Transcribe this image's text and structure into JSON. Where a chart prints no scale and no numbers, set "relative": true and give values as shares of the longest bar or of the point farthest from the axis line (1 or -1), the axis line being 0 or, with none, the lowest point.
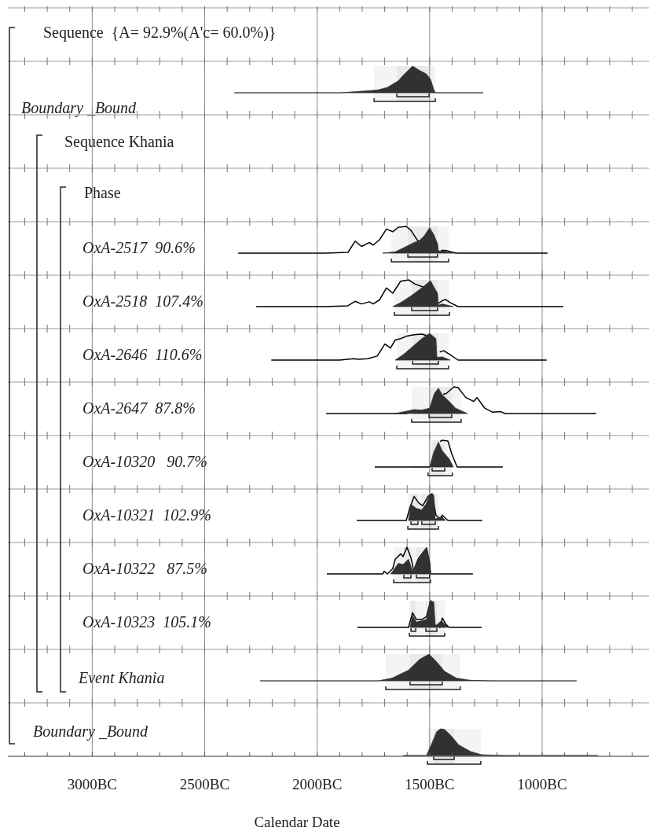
{
  "chart_data": [
    {
      "type": "other",
      "title": "Sequence  {A= 92.9%(A'c= 60.0%)}"
    },
    {
      "type": "area",
      "title": "Boundary _Bound",
      "relative": true,
      "xlim": [
        -3375,
        -525
      ],
      "grid": "x",
      "tick_labels": false,
      "series": [
        {
          "type": "area",
          "color": "#333333",
          "x": [
            -2368,
            -1897,
            -1733,
            -1688,
            -1639,
            -1618,
            -1576,
            -1548,
            -1514,
            -1496,
            -1479,
            -1470,
            -1262
          ],
          "values": [
            0,
            0,
            0.1,
            0.2,
            0.45,
            0.65,
            1,
            0.85,
            0.7,
            0.5,
            0.05,
            0,
            0
          ]
        }
      ],
      "bands": [
        {
          "axis": "x",
          "from": -1646,
          "to": -1503
        },
        {
          "axis": "x",
          "from": -1747,
          "to": -1475
        }
      ]
    },
    {
      "type": "other",
      "title": "Sequence Khania"
    },
    {
      "type": "other",
      "title": "Phase"
    },
    {
      "type": "area",
      "title": "OxA-2517  90.6%",
      "relative": true,
      "xlim": [
        -3375,
        -525
      ],
      "grid": "x",
      "tick_labels": false,
      "series": [
        {
          "type": "line",
          "color": "#000000",
          "x": [
            -2351,
            -1967,
            -1863,
            -1831,
            -1803,
            -1768,
            -1751,
            -1723,
            -1692,
            -1664,
            -1639,
            -1604,
            -1583,
            -1552,
            -1540,
            -1500,
            -1450,
            -1426,
            -1395,
            -1378,
            -976
          ],
          "values": [
            0,
            0,
            0.03,
            0.45,
            0.25,
            0.4,
            0.3,
            0.5,
            0.9,
            0.8,
            0.97,
            1,
            0.85,
            0.45,
            0.48,
            null,
            0.1,
            0.1,
            0.03,
            0,
            0
          ]
        },
        {
          "type": "area",
          "color": "#333333",
          "x": [
            -1709,
            -1653,
            -1604,
            -1569,
            -1548,
            -1524,
            -1500,
            -1482,
            -1465,
            -1461,
            -1440,
            -1410,
            -1385
          ],
          "values": [
            0,
            0.05,
            0.25,
            0.4,
            0.45,
            0.65,
            0.95,
            0.7,
            0.35,
            0.08,
            0.08,
            0.04,
            0
          ]
        }
      ],
      "bands": [
        {
          "axis": "x",
          "from": -1597,
          "to": -1465
        },
        {
          "axis": "x",
          "from": -1670,
          "to": -1416
        }
      ]
    },
    {
      "type": "area",
      "title": "OxA-2518  107.4%",
      "relative": true,
      "xlim": [
        -3375,
        -525
      ],
      "grid": "x",
      "tick_labels": false,
      "series": [
        {
          "type": "line",
          "color": "#000000",
          "x": [
            -2271,
            -1967,
            -1863,
            -1831,
            -1803,
            -1768,
            -1751,
            -1723,
            -1692,
            -1664,
            -1629,
            -1594,
            -1566,
            -1535,
            -1520,
            -1490,
            -1462,
            -1444,
            -1430,
            -1409,
            -1374,
            -906
          ],
          "values": [
            0,
            0,
            0.03,
            0.2,
            0.1,
            0.18,
            0.1,
            0.25,
            0.7,
            0.5,
            0.95,
            1,
            0.85,
            0.75,
            0.72,
            null,
            0.12,
            0.22,
            0.27,
            0.15,
            0,
            0
          ]
        },
        {
          "type": "area",
          "color": "#333333",
          "x": [
            -1664,
            -1629,
            -1583,
            -1535,
            -1496,
            -1479,
            -1465,
            -1461,
            -1444,
            -1420,
            -1395
          ],
          "values": [
            0,
            0.15,
            0.4,
            0.7,
            0.97,
            0.7,
            0.5,
            0.05,
            0.1,
            0.05,
            0
          ]
        }
      ],
      "bands": [
        {
          "axis": "x",
          "from": -1580,
          "to": -1465
        },
        {
          "axis": "x",
          "from": -1657,
          "to": -1412
        }
      ]
    },
    {
      "type": "area",
      "title": "OxA-2646  110.6%",
      "relative": true,
      "xlim": [
        -3375,
        -525
      ],
      "grid": "x",
      "tick_labels": false,
      "series": [
        {
          "type": "line",
          "color": "#000000",
          "x": [
            -2204,
            -1900,
            -1838,
            -1815,
            -1775,
            -1733,
            -1699,
            -1674,
            -1653,
            -1629,
            -1601,
            -1569,
            -1535,
            -1514,
            -1500,
            -1455,
            -1437,
            -1409,
            -1374,
            -980
          ],
          "values": [
            0,
            0,
            0.05,
            0.03,
            0.05,
            0.15,
            0.6,
            0.45,
            0.75,
            0.8,
            0.9,
            0.95,
            0.97,
            0.92,
            null,
            0.3,
            0.35,
            0.2,
            0,
            0
          ]
        },
        {
          "type": "area",
          "color": "#333333",
          "x": [
            -1653,
            -1618,
            -1583,
            -1535,
            -1500,
            -1472,
            -1468,
            -1444,
            -1409
          ],
          "values": [
            0,
            0.2,
            0.45,
            0.8,
            1,
            0.8,
            0.1,
            0.12,
            0
          ]
        }
      ],
      "bands": [
        {
          "axis": "x",
          "from": -1576,
          "to": -1461
        },
        {
          "axis": "x",
          "from": -1646,
          "to": -1416
        }
      ]
    },
    {
      "type": "area",
      "title": "OxA-2647  87.8%",
      "relative": true,
      "xlim": [
        -3375,
        -525
      ],
      "grid": "x",
      "tick_labels": false,
      "series": [
        {
          "type": "line",
          "color": "#000000",
          "x": [
            -1960,
            -1600,
            -1500,
            -1440,
            -1426,
            -1392,
            -1374,
            -1339,
            -1304,
            -1290,
            -1255,
            -1220,
            -1185,
            -1164,
            -760
          ],
          "values": [
            0,
            0,
            null,
            0.72,
            0.75,
            1,
            0.97,
            0.6,
            0.45,
            0.6,
            0.2,
            0.05,
            0.07,
            0,
            0
          ]
        },
        {
          "type": "area",
          "color": "#333333",
          "x": [
            -1653,
            -1569,
            -1535,
            -1500,
            -1479,
            -1461,
            -1444,
            -1419,
            -1385,
            -1332
          ],
          "values": [
            0,
            0.15,
            0.13,
            0.2,
            0.75,
            0.95,
            0.7,
            0.5,
            0.2,
            0
          ]
        }
      ],
      "bands": [
        {
          "axis": "x",
          "from": -1503,
          "to": -1402
        },
        {
          "axis": "x",
          "from": -1580,
          "to": -1360
        }
      ]
    },
    {
      "type": "area",
      "title": "OxA-10320   90.7%",
      "relative": true,
      "xlim": [
        -3375,
        -525
      ],
      "grid": "x",
      "tick_labels": false,
      "series": [
        {
          "type": "line",
          "color": "#000000",
          "x": [
            -1744,
            -1500,
            -1480,
            -1454,
            -1444,
            -1419,
            -1402,
            -1378,
            -1175
          ],
          "values": [
            0,
            0,
            null,
            0.95,
            1,
            0.97,
            0.5,
            0,
            0
          ]
        },
        {
          "type": "area",
          "color": "#333333",
          "x": [
            -1580,
            -1569,
            -1560,
            -1500,
            -1482,
            -1461,
            -1444,
            -1413,
            -1395
          ],
          "values": [
            0,
            0.02,
            0,
            0,
            0.55,
            0.93,
            0.6,
            0.3,
            0
          ]
        }
      ],
      "bands": [
        {
          "axis": "x",
          "from": -1489,
          "to": -1433
        },
        {
          "axis": "x",
          "from": -1507,
          "to": -1399
        }
      ]
    },
    {
      "type": "area",
      "title": "OxA-10321  102.9%",
      "relative": true,
      "xlim": [
        -3375,
        -525
      ],
      "grid": "x",
      "tick_labels": false,
      "series": [
        {
          "type": "line",
          "color": "#000000",
          "x": [
            -1824,
            -1604,
            -1587,
            -1569,
            -1548,
            -1531,
            -1507,
            -1489,
            -1472,
            -1454,
            -1444,
            -1419,
            -1266
          ],
          "values": [
            0,
            0,
            0.5,
            0.9,
            0.65,
            0.55,
            0.9,
            1,
            0.2,
            0.05,
            0.2,
            0,
            0
          ]
        },
        {
          "type": "area",
          "color": "#333333",
          "x": [
            -1594,
            -1583,
            -1559,
            -1535,
            -1517,
            -1500,
            -1482,
            -1475,
            -1447,
            -1430
          ],
          "values": [
            0,
            0.6,
            0.45,
            0.4,
            0.6,
            0.95,
            0.95,
            0.05,
            0.15,
            0
          ]
        }
      ],
      "bands": [
        {
          "axis": "x",
          "from": -1583,
          "to": -1552
        },
        {
          "axis": "x",
          "from": -1535,
          "to": -1475
        },
        {
          "axis": "x",
          "from": -1597,
          "to": -1461
        }
      ]
    },
    {
      "type": "area",
      "title": "OxA-10322   87.5%",
      "relative": true,
      "xlim": [
        -3375,
        -525
      ],
      "grid": "x",
      "tick_labels": false,
      "series": [
        {
          "type": "line",
          "color": "#000000",
          "x": [
            -1957,
            -1709,
            -1702,
            -1688,
            -1664,
            -1653,
            -1629,
            -1618,
            -1601,
            -1583,
            -1569,
            -1559,
            -1548,
            -1514,
            -1500,
            -1496,
            -1308
          ],
          "values": [
            0,
            0,
            0.1,
            0,
            0.2,
            0.55,
            0.75,
            0.65,
            1,
            0.6,
            0.05,
            0.4,
            0.6,
            0.97,
            0.4,
            0,
            0
          ]
        },
        {
          "type": "area",
          "color": "#333333",
          "x": [
            -1674,
            -1664,
            -1639,
            -1618,
            -1594,
            -1576,
            -1559,
            -1535,
            -1514,
            -1500,
            -1496
          ],
          "values": [
            0,
            0.1,
            0.4,
            0.35,
            0.55,
            0.1,
            0.4,
            0.7,
            0.97,
            0.4,
            0
          ]
        }
      ],
      "bands": [
        {
          "axis": "x",
          "from": -1615,
          "to": -1583
        },
        {
          "axis": "x",
          "from": -1559,
          "to": -1500
        },
        {
          "axis": "x",
          "from": -1660,
          "to": -1496
        }
      ]
    },
    {
      "type": "area",
      "title": "OxA-10323  105.1%",
      "relative": true,
      "xlim": [
        -3375,
        -525
      ],
      "grid": "x",
      "tick_labels": false,
      "series": [
        {
          "type": "line",
          "color": "#000000",
          "x": [
            -1821,
            -1594,
            -1576,
            -1559,
            -1535,
            -1514,
            -1496,
            -1479,
            -1454,
            -1444,
            -1426,
            -1413,
            -1269
          ],
          "values": [
            0,
            0,
            0.55,
            0.3,
            0.3,
            0.4,
            1,
            0.1,
            0,
            0.35,
            0.1,
            0,
            0
          ]
        },
        {
          "type": "area",
          "color": "#333333",
          "x": [
            -1587,
            -1576,
            -1559,
            -1535,
            -1514,
            -1496,
            -1482,
            -1475,
            -1447,
            -1419
          ],
          "values": [
            0,
            0.45,
            0.2,
            0.25,
            0.3,
            1,
            0.95,
            0.05,
            0.25,
            0
          ]
        }
      ],
      "bands": [
        {
          "axis": "x",
          "from": -1583,
          "to": -1562
        },
        {
          "axis": "x",
          "from": -1517,
          "to": -1468
        },
        {
          "axis": "x",
          "from": -1590,
          "to": -1433
        }
      ]
    },
    {
      "type": "area",
      "title": "Event Khania",
      "relative": true,
      "xlim": [
        -3375,
        -525
      ],
      "grid": "x",
      "tick_labels": false,
      "series": [
        {
          "type": "area",
          "color": "#333333",
          "x": [
            -2253,
            -1730,
            -1667,
            -1594,
            -1545,
            -1503,
            -1468,
            -1433,
            -1381,
            -1318,
            -1220,
            -847
          ],
          "values": [
            0,
            0,
            0.1,
            0.4,
            0.8,
            1,
            0.7,
            0.35,
            0.1,
            0.02,
            0,
            0
          ]
        }
      ],
      "bands": [
        {
          "axis": "x",
          "from": -1587,
          "to": -1444
        },
        {
          "axis": "x",
          "from": -1695,
          "to": -1364
        }
      ]
    },
    {
      "type": "area",
      "title": "Boundary _Bound",
      "xlabel": "Calendar Date",
      "relative": true,
      "xlim": [
        -3375,
        -525
      ],
      "xticks": [
        {
          "value": -3000,
          "label": "3000BC"
        },
        {
          "value": -2500,
          "label": "2500BC"
        },
        {
          "value": -2000,
          "label": "2000BC"
        },
        {
          "value": -1500,
          "label": "1500BC"
        },
        {
          "value": -1000,
          "label": "1000BC"
        }
      ],
      "grid": "x",
      "series": [
        {
          "type": "area",
          "color": "#333333",
          "x": [
            -1618,
            -1514,
            -1493,
            -1468,
            -1451,
            -1433,
            -1406,
            -1371,
            -1318,
            -1269,
            -1158,
            -753
          ],
          "values": [
            0,
            0,
            0.4,
            0.9,
            1,
            0.97,
            0.75,
            0.4,
            0.15,
            0.03,
            0,
            0
          ]
        }
      ],
      "bands": [
        {
          "axis": "x",
          "from": -1482,
          "to": -1391
        },
        {
          "axis": "x",
          "from": -1510,
          "to": -1273
        }
      ]
    }
  ]
}
